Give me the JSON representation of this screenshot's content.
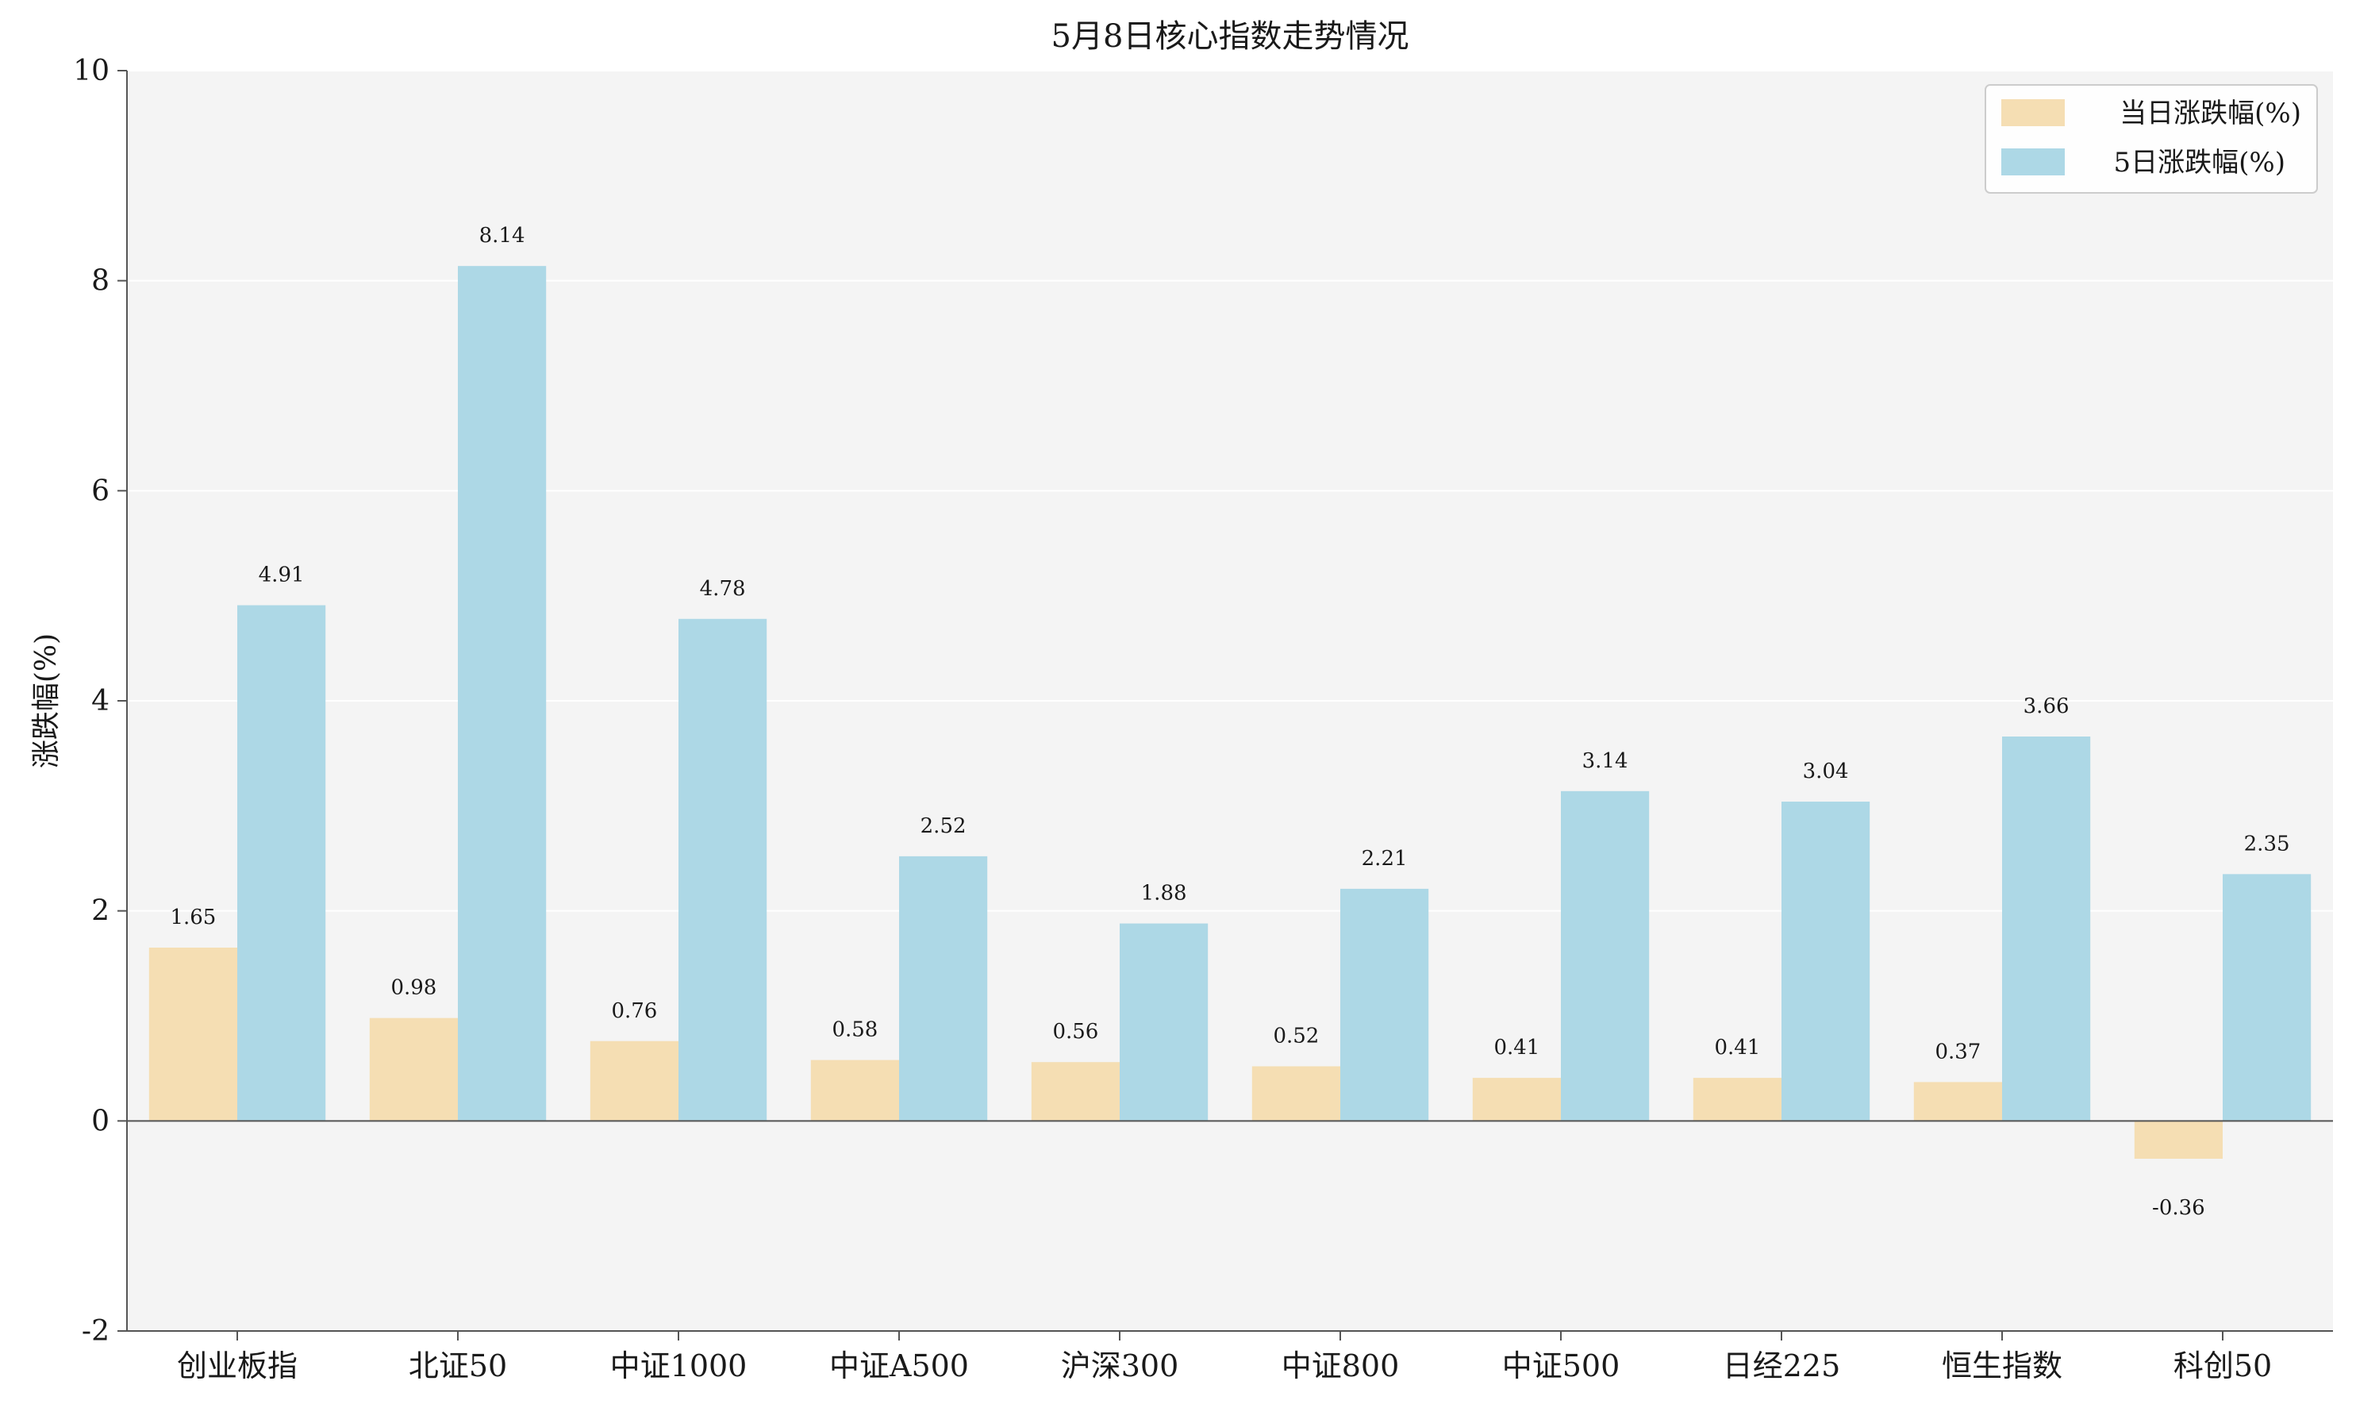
{
  "chart_data": {
    "type": "bar",
    "title": "5月8日核心指数走势情况",
    "xlabel": "",
    "ylabel": "涨跌幅(%)",
    "ylim": [
      -2,
      10
    ],
    "yticks": [
      "-2",
      "0",
      "2",
      "4",
      "6",
      "8",
      "10"
    ],
    "grid": true,
    "legend_position": "top-right",
    "categories": [
      "创业板指",
      "北证50",
      "中证1000",
      "中证A500",
      "沪深300",
      "中证800",
      "中证500",
      "日经225",
      "恒生指数",
      "科创50"
    ],
    "series": [
      {
        "name": "当日涨跌幅(%)",
        "color": "#f5deb3",
        "values": [
          1.65,
          0.98,
          0.76,
          0.58,
          0.56,
          0.52,
          0.41,
          0.41,
          0.37,
          -0.36
        ],
        "labels": [
          "1.65",
          "0.98",
          "0.76",
          "0.58",
          "0.56",
          "0.52",
          "0.41",
          "0.41",
          "0.37",
          "-0.36"
        ]
      },
      {
        "name": "5日涨跌幅(%)",
        "color": "#add8e6",
        "values": [
          4.91,
          8.14,
          4.78,
          2.52,
          1.88,
          2.21,
          3.14,
          3.04,
          3.66,
          2.35
        ],
        "labels": [
          "4.91",
          "8.14",
          "4.78",
          "2.52",
          "1.88",
          "2.21",
          "3.14",
          "3.04",
          "3.66",
          "2.35"
        ]
      }
    ],
    "plot_bg": "#f4f4f4",
    "grid_color": "#ffffff",
    "axis_color": "#555555"
  }
}
